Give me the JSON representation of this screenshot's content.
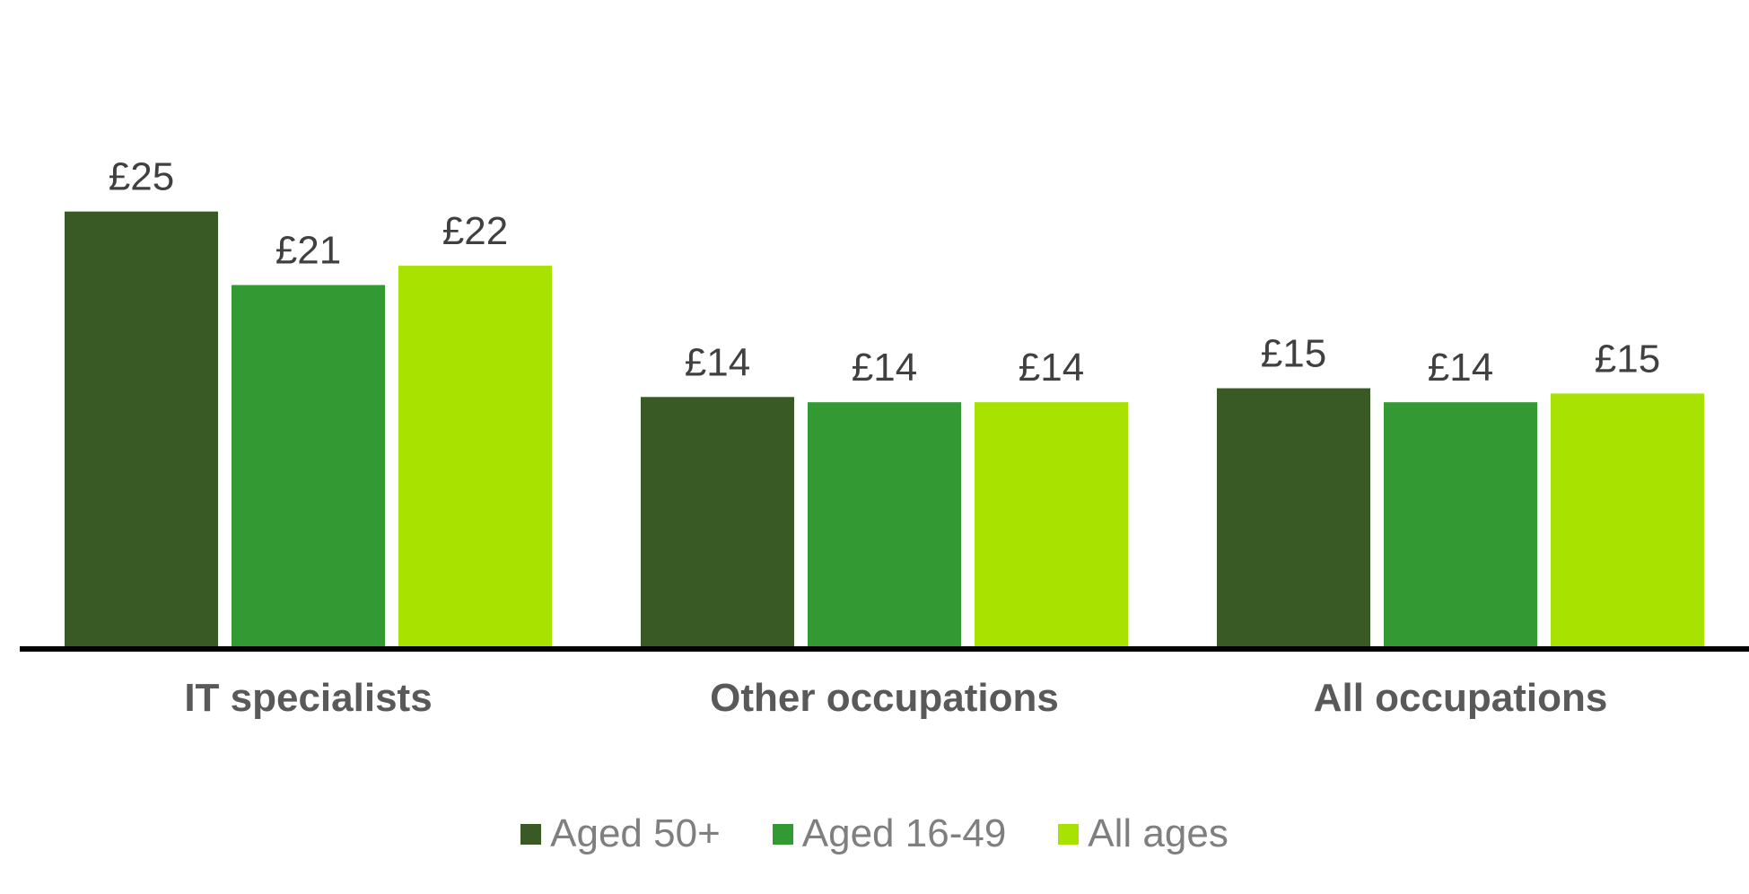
{
  "chart_data": {
    "type": "bar",
    "categories": [
      "IT specialists",
      "Other occupations",
      "All occupations"
    ],
    "series": [
      {
        "name": "Aged 50+",
        "color": "#3a5a25",
        "values": [
          25,
          14.4,
          14.9
        ],
        "labels": [
          "£25",
          "£14",
          "£15"
        ]
      },
      {
        "name": "Aged 16-49",
        "color": "#339933",
        "values": [
          20.8,
          14.1,
          14.1
        ],
        "labels": [
          "£21",
          "£14",
          "£14"
        ]
      },
      {
        "name": "All ages",
        "color": "#a8e200",
        "values": [
          21.9,
          14.1,
          14.6
        ],
        "labels": [
          "£22",
          "£14",
          "£15"
        ]
      }
    ],
    "ylim": [
      0,
      30
    ],
    "grid": false,
    "legend": "bottom",
    "text_color": "#404040",
    "axis_label_color": "#595959",
    "legend_text_color": "#7f7f7f"
  }
}
